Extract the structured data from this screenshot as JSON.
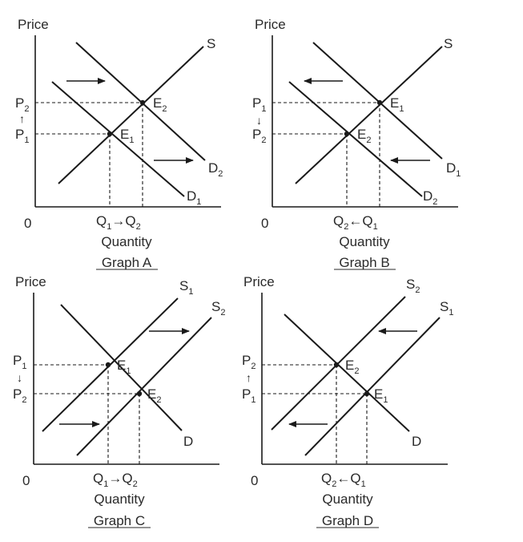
{
  "figure": {
    "graphs": [
      {
        "id": "A",
        "axis_title": "Price",
        "origin": "0",
        "quantity_label": "Quantity",
        "caption": "Graph A",
        "curves": [
          {
            "name": "S",
            "sub": ""
          },
          {
            "name": "D",
            "sub": "1"
          },
          {
            "name": "D",
            "sub": "2"
          }
        ],
        "price_labels": [
          {
            "name": "P",
            "sub": "2"
          },
          {
            "name": "P",
            "sub": "1"
          }
        ],
        "price_arrow": "↑",
        "points": [
          {
            "name": "E",
            "sub": "2"
          },
          {
            "name": "E",
            "sub": "1"
          }
        ],
        "q_first": {
          "name": "Q",
          "sub": "1"
        },
        "q_arrow": "→",
        "q_second": {
          "name": "Q",
          "sub": "2"
        }
      },
      {
        "id": "B",
        "axis_title": "Price",
        "origin": "0",
        "quantity_label": "Quantity",
        "caption": "Graph B",
        "curves": [
          {
            "name": "S",
            "sub": ""
          },
          {
            "name": "D",
            "sub": "1"
          },
          {
            "name": "D",
            "sub": "2"
          }
        ],
        "price_labels": [
          {
            "name": "P",
            "sub": "1"
          },
          {
            "name": "P",
            "sub": "2"
          }
        ],
        "price_arrow": "↓",
        "points": [
          {
            "name": "E",
            "sub": "1"
          },
          {
            "name": "E",
            "sub": "2"
          }
        ],
        "q_first": {
          "name": "Q",
          "sub": "2"
        },
        "q_arrow": "←",
        "q_second": {
          "name": "Q",
          "sub": "1"
        }
      },
      {
        "id": "C",
        "axis_title": "Price",
        "origin": "0",
        "quantity_label": "Quantity",
        "caption": "Graph C",
        "curves": [
          {
            "name": "S",
            "sub": "1"
          },
          {
            "name": "S",
            "sub": "2"
          },
          {
            "name": "D",
            "sub": ""
          }
        ],
        "price_labels": [
          {
            "name": "P",
            "sub": "1"
          },
          {
            "name": "P",
            "sub": "2"
          }
        ],
        "price_arrow": "↓",
        "points": [
          {
            "name": "E",
            "sub": "1"
          },
          {
            "name": "E",
            "sub": "2"
          }
        ],
        "q_first": {
          "name": "Q",
          "sub": "1"
        },
        "q_arrow": "→",
        "q_second": {
          "name": "Q",
          "sub": "2"
        }
      },
      {
        "id": "D",
        "axis_title": "Price",
        "origin": "0",
        "quantity_label": "Quantity",
        "caption": "Graph D",
        "curves": [
          {
            "name": "S",
            "sub": "2"
          },
          {
            "name": "S",
            "sub": "1"
          },
          {
            "name": "D",
            "sub": ""
          }
        ],
        "price_labels": [
          {
            "name": "P",
            "sub": "2"
          },
          {
            "name": "P",
            "sub": "1"
          }
        ],
        "price_arrow": "↑",
        "points": [
          {
            "name": "E",
            "sub": "2"
          },
          {
            "name": "E",
            "sub": "1"
          }
        ],
        "q_first": {
          "name": "Q",
          "sub": "2"
        },
        "q_arrow": "←",
        "q_second": {
          "name": "Q",
          "sub": "1"
        }
      }
    ]
  }
}
